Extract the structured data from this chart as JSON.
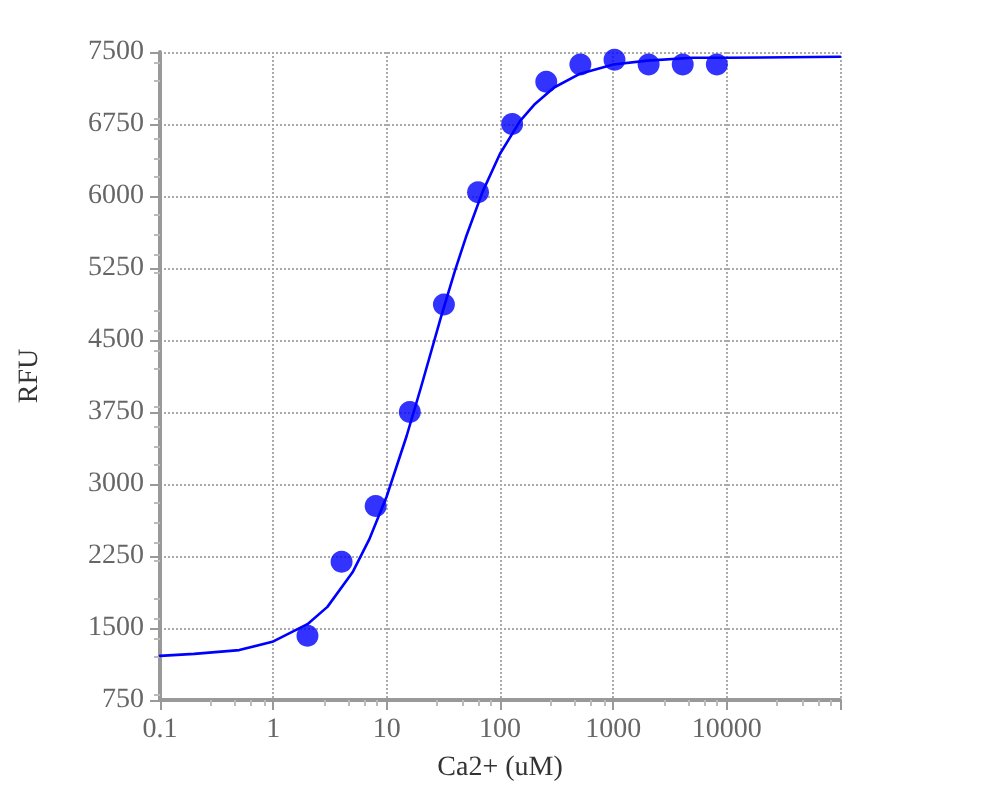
{
  "chart_data": {
    "type": "scatter",
    "xlabel": "Ca2+ (uM)",
    "ylabel": "RFU",
    "log": "x",
    "xlim": [
      0.1,
      100000
    ],
    "xticks": [
      0.1,
      1,
      10,
      100,
      1000,
      10000,
      {
        "value": 100000,
        "label": null
      }
    ],
    "ylim": [
      750,
      7500
    ],
    "yticks": [
      750,
      1500,
      2250,
      3000,
      3750,
      4500,
      5250,
      6000,
      6750,
      7500
    ],
    "grid": true,
    "series": [
      {
        "marker": "circle",
        "color": "#0000ff",
        "x": [
          2,
          4,
          8,
          16,
          32,
          64,
          128,
          256,
          512,
          1024,
          2048,
          4096,
          8192
        ],
        "values": [
          1420,
          2190,
          2770,
          3750,
          4870,
          6040,
          6750,
          7190,
          7370,
          7420,
          7370,
          7370,
          7370
        ]
      },
      {
        "type": "line",
        "marker": "none",
        "line_style": "solid",
        "color": "#0000ff",
        "x": [
          0.1,
          0.2,
          0.5,
          1,
          2,
          3,
          5,
          7,
          10,
          15,
          20,
          30,
          40,
          50,
          70,
          100,
          150,
          200,
          300,
          500,
          1000,
          2000,
          5000,
          10000,
          100000
        ],
        "values": [
          1210,
          1230,
          1270,
          1360,
          1540,
          1720,
          2080,
          2420,
          2870,
          3500,
          4000,
          4730,
          5220,
          5570,
          6040,
          6440,
          6780,
          6950,
          7130,
          7270,
          7370,
          7410,
          7440,
          7440,
          7450
        ]
      }
    ]
  }
}
